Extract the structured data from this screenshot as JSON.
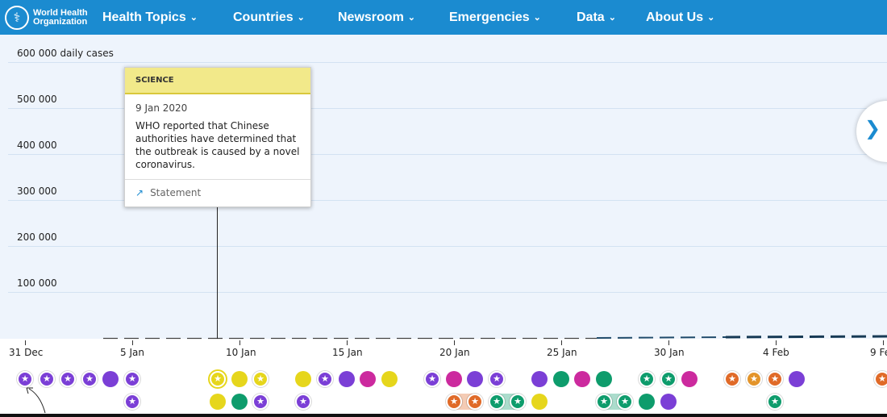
{
  "nav": {
    "logo_line1": "World Health",
    "logo_line2": "Organization",
    "items": [
      {
        "label": "Health Topics"
      },
      {
        "label": "Countries"
      },
      {
        "label": "Newsroom"
      },
      {
        "label": "Emergencies"
      },
      {
        "label": "Data"
      },
      {
        "label": "About Us"
      }
    ]
  },
  "chart": {
    "y_labels": [
      "600 000 daily cases",
      "500 000",
      "400 000",
      "300 000",
      "200 000",
      "100 000"
    ],
    "x_labels": [
      "31 Dec",
      "5 Jan",
      "10 Jan",
      "15 Jan",
      "20 Jan",
      "25 Jan",
      "30 Jan",
      "4 Feb",
      "9 Fe"
    ]
  },
  "tooltip": {
    "category": "SCIENCE",
    "date": "9 Jan 2020",
    "text": "WHO reported that Chinese authorities have determined that the outbreak is caused by a novel coronavirus.",
    "link_label": "Statement"
  },
  "colors": {
    "purple": "#7b3fd6",
    "yellow": "#e6d61c",
    "green": "#0e9c6c",
    "magenta": "#cc2a9e",
    "orange": "#e06a28",
    "amber": "#e3942a",
    "brand": "#1b8bd0"
  },
  "icons": {
    "next": "chevron-right-icon",
    "link": "external-link-icon",
    "star": "star-icon"
  }
}
